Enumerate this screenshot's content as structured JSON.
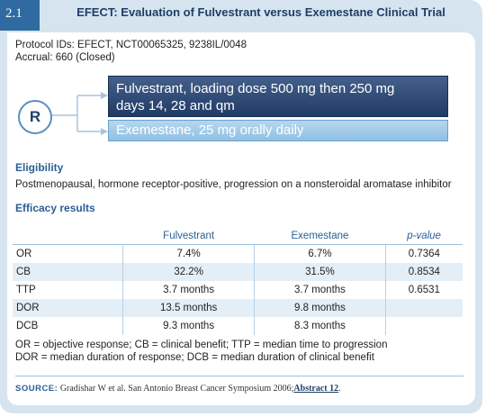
{
  "header": {
    "tag": "2.1",
    "title": "EFECT: Evaluation of Fulvestrant versus Exemestane Clinical Trial"
  },
  "protocol": {
    "ids": "Protocol IDs: EFECT, NCT00065325, 9238IL/0048",
    "accrual": "Accrual: 660 (Closed)"
  },
  "schema": {
    "randomize_label": "R",
    "arm1_line1": "Fulvestrant, loading dose 500 mg then 250 mg",
    "arm1_line2": "days 14, 28 and qm",
    "arm2": "Exemestane, 25 mg orally daily",
    "colors": {
      "arm1": "#1f3b66",
      "arm2": "#8fc0e4"
    }
  },
  "eligibility": {
    "heading": "Eligibility",
    "text": "Postmenopausal, hormone receptor-positive, progression on a nonsteroidal aromatase inhibitor"
  },
  "efficacy": {
    "heading": "Efficacy results",
    "columns": [
      "",
      "Fulvestrant",
      "Exemestane",
      "p-value"
    ],
    "rows": [
      [
        "OR",
        "7.4%",
        "6.7%",
        "0.7364"
      ],
      [
        "CB",
        "32.2%",
        "31.5%",
        "0.8534"
      ],
      [
        "TTP",
        "3.7 months",
        "3.7 months",
        "0.6531"
      ],
      [
        "DOR",
        "13.5 months",
        "9.8 months",
        ""
      ],
      [
        "DCB",
        "9.3 months",
        "8.3 months",
        ""
      ]
    ]
  },
  "footnotes": {
    "line1": "OR = objective response; CB = clinical benefit; TTP = median time to progression",
    "line2": "DOR = median duration of response; DCB = median duration of clinical benefit"
  },
  "source": {
    "label": "SOURCE:",
    "text": "Gradishar W et al. San Antonio Breast Cancer Symposium 2006;",
    "abstract": "Abstract 12",
    "end": "."
  }
}
